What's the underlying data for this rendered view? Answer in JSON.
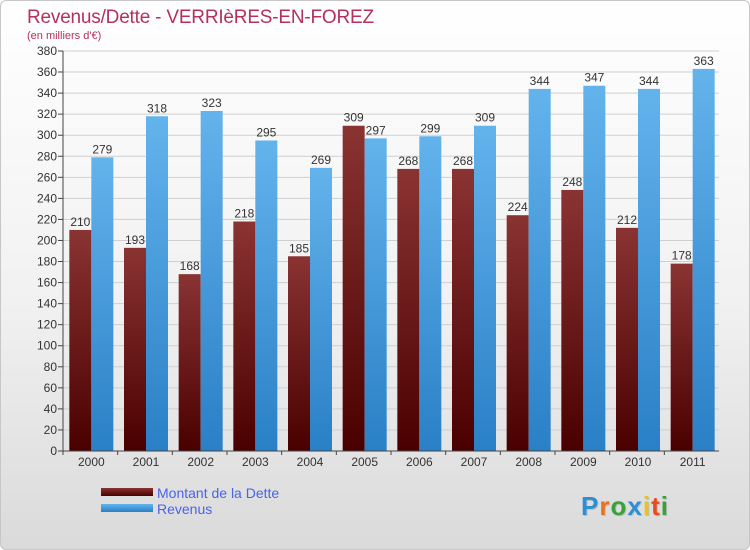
{
  "header": {
    "title": "Revenus/Dette - VERRIèRES-EN-FOREZ",
    "subtitle": "(en milliers d'€)"
  },
  "colors": {
    "title": "#b5305d",
    "dette_dark": "#4a0000",
    "dette_light": "#8a3333",
    "revenus_dark": "#2a80c6",
    "revenus_light": "#63b3ec",
    "legend_text": "#4a63e8"
  },
  "chart_data": {
    "type": "bar",
    "categories": [
      "2000",
      "2001",
      "2002",
      "2003",
      "2004",
      "2005",
      "2006",
      "2007",
      "2008",
      "2009",
      "2010",
      "2011"
    ],
    "series": [
      {
        "name": "Montant de la Dette",
        "values": [
          210,
          193,
          168,
          218,
          185,
          309,
          268,
          268,
          224,
          248,
          212,
          178
        ]
      },
      {
        "name": "Revenus",
        "values": [
          279,
          318,
          323,
          295,
          269,
          297,
          299,
          309,
          344,
          347,
          344,
          363
        ]
      }
    ],
    "ylim": [
      0,
      380
    ],
    "yticks": [
      0,
      20,
      40,
      60,
      80,
      100,
      120,
      140,
      160,
      180,
      200,
      220,
      240,
      260,
      280,
      300,
      320,
      340,
      360,
      380
    ],
    "grid": true,
    "legend": "bottom-left"
  },
  "legend": {
    "items": [
      {
        "label": "Montant de la Dette",
        "icon": "dark-red-bar-swatch"
      },
      {
        "label": "Revenus",
        "icon": "blue-bar-swatch"
      }
    ]
  },
  "logo": {
    "letters": [
      "P",
      "r",
      "o",
      "x",
      "i",
      "t",
      "i"
    ],
    "colors": [
      "#2a8fd6",
      "#e8731c",
      "#37a23a",
      "#2a8fd6",
      "#e8c51c",
      "#e84c1c",
      "#37a23a"
    ]
  }
}
